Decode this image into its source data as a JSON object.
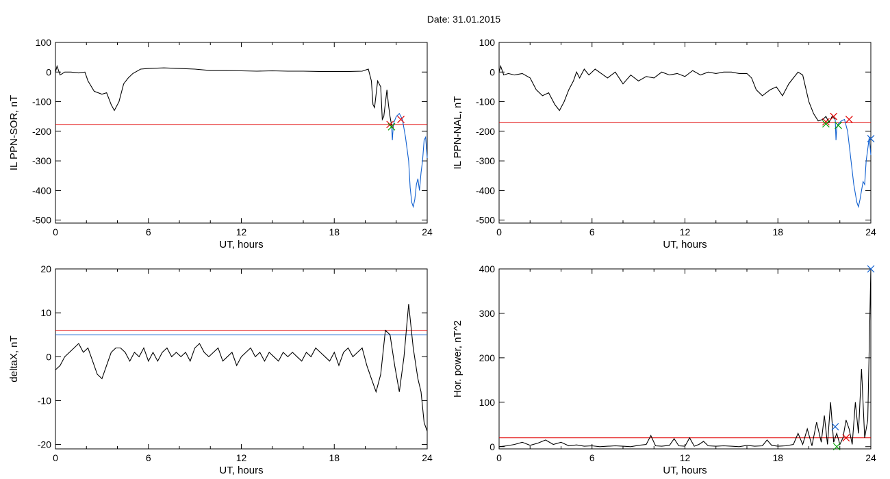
{
  "title": "Date:  31.01.2015",
  "colors": {
    "trace": "#000000",
    "threshold": "#e00000",
    "alt_threshold": "#1060d0",
    "marker_red": "#e00000",
    "marker_green": "#00a000",
    "marker_blue": "#1060d0"
  },
  "chart_data": [
    {
      "type": "line",
      "title": "",
      "xlabel": "UT, hours",
      "ylabel": "IL PPN-SOR, nT",
      "xlim": [
        0,
        24
      ],
      "ylim": [
        -510,
        100
      ],
      "xticks": [
        0,
        6,
        12,
        18,
        24
      ],
      "yticks": [
        -500,
        -400,
        -300,
        -200,
        -100,
        0,
        100
      ],
      "grid": false,
      "series": [
        {
          "color": "#000000",
          "x": [
            0,
            0.1,
            0.3,
            0.6,
            1,
            1.5,
            1.9,
            2.1,
            2.5,
            3.0,
            3.3,
            3.6,
            3.8,
            4.1,
            4.4,
            4.7,
            5.0,
            5.5,
            6,
            7,
            8,
            9,
            10,
            11,
            12,
            13,
            14,
            15,
            16,
            17,
            18,
            19,
            19.8,
            20.2,
            20.4,
            20.5,
            20.6,
            20.8,
            21.0,
            21.1,
            21.2,
            21.4,
            21.5,
            21.6,
            21.7
          ],
          "y": [
            0,
            20,
            -10,
            0,
            0,
            -3,
            0,
            -30,
            -65,
            -75,
            -70,
            -110,
            -130,
            -100,
            -40,
            -20,
            -5,
            10,
            12,
            14,
            12,
            10,
            5,
            5,
            4,
            3,
            4,
            3,
            3,
            2,
            2,
            2,
            3,
            10,
            -30,
            -110,
            -120,
            -30,
            -50,
            -160,
            -150,
            -60,
            -110,
            -150,
            -180
          ]
        },
        {
          "color": "#1060d0",
          "x": [
            21.7,
            21.75,
            21.8,
            21.85,
            22.0,
            22.2,
            22.4,
            22.6,
            22.8,
            22.9,
            23.0,
            23.1,
            23.2,
            23.3,
            23.4,
            23.5,
            23.6,
            23.7,
            23.8,
            23.9,
            24.0
          ],
          "y": [
            -180,
            -230,
            -190,
            -170,
            -150,
            -140,
            -160,
            -220,
            -300,
            -390,
            -440,
            -455,
            -430,
            -380,
            -360,
            -400,
            -340,
            -300,
            -230,
            -220,
            -290
          ]
        }
      ],
      "thresholds": [
        {
          "y": -177,
          "color": "#e00000"
        }
      ],
      "markers": [
        {
          "x": 21.6,
          "y": -177,
          "color": "#e00000"
        },
        {
          "x": 22.3,
          "y": -160,
          "color": "#e00000"
        },
        {
          "x": 21.7,
          "y": -185,
          "color": "#00a000"
        }
      ]
    },
    {
      "type": "line",
      "title": "",
      "xlabel": "UT, hours",
      "ylabel": "IL PPN-NAL, nT",
      "xlim": [
        0,
        24
      ],
      "ylim": [
        -510,
        100
      ],
      "xticks": [
        0,
        6,
        12,
        18,
        24
      ],
      "yticks": [
        -500,
        -400,
        -300,
        -200,
        -100,
        0,
        100
      ],
      "grid": false,
      "series": [
        {
          "color": "#000000",
          "x": [
            0,
            0.1,
            0.3,
            0.6,
            1,
            1.5,
            2.0,
            2.4,
            2.8,
            3.2,
            3.6,
            3.9,
            4.2,
            4.5,
            4.8,
            5.0,
            5.2,
            5.5,
            5.8,
            6.2,
            6.6,
            7.0,
            7.5,
            8.0,
            8.5,
            9.0,
            9.5,
            10,
            10.5,
            11,
            11.5,
            12,
            12.5,
            13,
            13.5,
            14,
            14.5,
            15,
            15.5,
            16,
            16.3,
            16.6,
            17.0,
            17.5,
            17.9,
            18.3,
            18.7,
            19.0,
            19.3,
            19.6,
            20.0,
            20.3,
            20.6,
            20.9,
            21.1,
            21.3,
            21.5,
            21.7
          ],
          "y": [
            0,
            20,
            -10,
            -5,
            -10,
            -5,
            -20,
            -60,
            -80,
            -70,
            -110,
            -130,
            -100,
            -60,
            -30,
            0,
            -20,
            10,
            -10,
            10,
            -5,
            -20,
            0,
            -40,
            -10,
            -30,
            -15,
            -20,
            0,
            -10,
            -5,
            -15,
            5,
            -10,
            0,
            -5,
            0,
            0,
            -5,
            -5,
            -20,
            -60,
            -80,
            -60,
            -50,
            -80,
            -40,
            -20,
            0,
            -10,
            -100,
            -140,
            -165,
            -160,
            -150,
            -170,
            -150,
            -160
          ]
        },
        {
          "color": "#1060d0",
          "x": [
            21.7,
            21.75,
            21.8,
            21.9,
            22.1,
            22.3,
            22.5,
            22.7,
            22.9,
            23.1,
            23.2,
            23.3,
            23.4,
            23.5,
            23.6,
            23.7,
            23.8,
            23.9,
            24.0
          ],
          "y": [
            -160,
            -230,
            -190,
            -175,
            -165,
            -160,
            -200,
            -290,
            -380,
            -440,
            -455,
            -430,
            -400,
            -370,
            -380,
            -300,
            -260,
            -220,
            -280
          ]
        }
      ],
      "thresholds": [
        {
          "y": -171,
          "color": "#e00000"
        }
      ],
      "markers": [
        {
          "x": 21.1,
          "y": -168,
          "color": "#e00000"
        },
        {
          "x": 21.6,
          "y": -150,
          "color": "#e00000"
        },
        {
          "x": 22.6,
          "y": -160,
          "color": "#e00000"
        },
        {
          "x": 21.1,
          "y": -175,
          "color": "#00a000"
        },
        {
          "x": 21.9,
          "y": -180,
          "color": "#00a000"
        },
        {
          "x": 24.0,
          "y": -225,
          "color": "#1060d0"
        }
      ]
    },
    {
      "type": "line",
      "title": "",
      "xlabel": "UT, hours",
      "ylabel": "deltaX, nT",
      "xlim": [
        0,
        24
      ],
      "ylim": [
        -21,
        20
      ],
      "xticks": [
        0,
        6,
        12,
        18,
        24
      ],
      "yticks": [
        -20,
        -10,
        0,
        10,
        20
      ],
      "grid": false,
      "series": [
        {
          "color": "#000000",
          "x": [
            0,
            0.3,
            0.6,
            0.9,
            1.2,
            1.5,
            1.8,
            2.1,
            2.4,
            2.7,
            3.0,
            3.3,
            3.6,
            3.9,
            4.2,
            4.5,
            4.8,
            5.1,
            5.4,
            5.7,
            6.0,
            6.3,
            6.6,
            6.9,
            7.2,
            7.5,
            7.8,
            8.1,
            8.4,
            8.7,
            9.0,
            9.3,
            9.6,
            9.9,
            10.2,
            10.5,
            10.8,
            11.1,
            11.4,
            11.7,
            12.0,
            12.3,
            12.6,
            12.9,
            13.2,
            13.5,
            13.8,
            14.1,
            14.4,
            14.7,
            15.0,
            15.3,
            15.6,
            15.9,
            16.2,
            16.5,
            16.8,
            17.1,
            17.4,
            17.7,
            18.0,
            18.3,
            18.6,
            18.9,
            19.2,
            19.5,
            19.8,
            20.1,
            20.4,
            20.7,
            21.0,
            21.3,
            21.6,
            21.9,
            22.2,
            22.5,
            22.8,
            23.1,
            23.4,
            23.6,
            23.8,
            24.0
          ],
          "y": [
            -3,
            -2,
            0,
            1,
            2,
            3,
            1,
            2,
            -1,
            -4,
            -5,
            -2,
            1,
            2,
            2,
            1,
            -1,
            1,
            0,
            2,
            -1,
            1,
            -1,
            1,
            2,
            0,
            1,
            0,
            1,
            -1,
            2,
            3,
            1,
            0,
            1,
            2,
            -1,
            0,
            1,
            -2,
            0,
            1,
            2,
            0,
            1,
            -1,
            1,
            0,
            -1,
            1,
            0,
            1,
            0,
            -1,
            1,
            0,
            2,
            1,
            0,
            -1,
            1,
            -2,
            1,
            2,
            0,
            1,
            2,
            -2,
            -5,
            -8,
            -4,
            6,
            5,
            -2,
            -8,
            0,
            12,
            2,
            -5,
            -8,
            -15,
            -17
          ]
        }
      ],
      "thresholds": [
        {
          "y": 6,
          "color": "#e00000"
        },
        {
          "y": 5,
          "color": "#1060d0"
        }
      ],
      "markers": []
    },
    {
      "type": "line",
      "title": "",
      "xlabel": "UT, hours",
      "ylabel": "Hor. power, nT^2",
      "xlim": [
        0,
        24
      ],
      "ylim": [
        -5,
        400
      ],
      "xticks": [
        0,
        6,
        12,
        18,
        24
      ],
      "yticks": [
        0,
        100,
        200,
        300,
        400
      ],
      "grid": false,
      "series": [
        {
          "color": "#000000",
          "x": [
            0,
            0.5,
            1.0,
            1.5,
            2.0,
            2.5,
            3.0,
            3.5,
            4.0,
            4.5,
            5.0,
            5.5,
            6.0,
            6.5,
            7.0,
            7.5,
            8.0,
            8.5,
            9.0,
            9.5,
            9.8,
            10.1,
            10.5,
            11.0,
            11.3,
            11.6,
            12.0,
            12.3,
            12.6,
            12.9,
            13.2,
            13.5,
            14.0,
            14.5,
            15.0,
            15.5,
            16.0,
            16.5,
            17.0,
            17.3,
            17.6,
            18.0,
            18.5,
            19.0,
            19.3,
            19.6,
            19.9,
            20.2,
            20.5,
            20.8,
            21.0,
            21.2,
            21.4,
            21.6,
            21.8,
            22.0,
            22.2,
            22.4,
            22.6,
            22.8,
            23.0,
            23.2,
            23.4,
            23.6,
            23.8,
            24.0
          ],
          "y": [
            0,
            2,
            5,
            10,
            3,
            8,
            15,
            5,
            10,
            2,
            4,
            1,
            2,
            0,
            1,
            2,
            1,
            0,
            3,
            5,
            25,
            2,
            1,
            3,
            18,
            2,
            1,
            20,
            1,
            5,
            12,
            2,
            1,
            2,
            1,
            0,
            3,
            1,
            2,
            15,
            3,
            1,
            2,
            5,
            30,
            5,
            40,
            2,
            55,
            10,
            70,
            5,
            100,
            10,
            30,
            5,
            20,
            60,
            40,
            5,
            100,
            30,
            175,
            20,
            60,
            400
          ]
        }
      ],
      "thresholds": [
        {
          "y": 20,
          "color": "#e00000"
        }
      ],
      "markers": [
        {
          "x": 21.7,
          "y": 45,
          "color": "#1060d0"
        },
        {
          "x": 22.4,
          "y": 20,
          "color": "#e00000"
        },
        {
          "x": 21.8,
          "y": 0,
          "color": "#00a000"
        },
        {
          "x": 24.0,
          "y": 400,
          "color": "#1060d0"
        }
      ]
    }
  ]
}
